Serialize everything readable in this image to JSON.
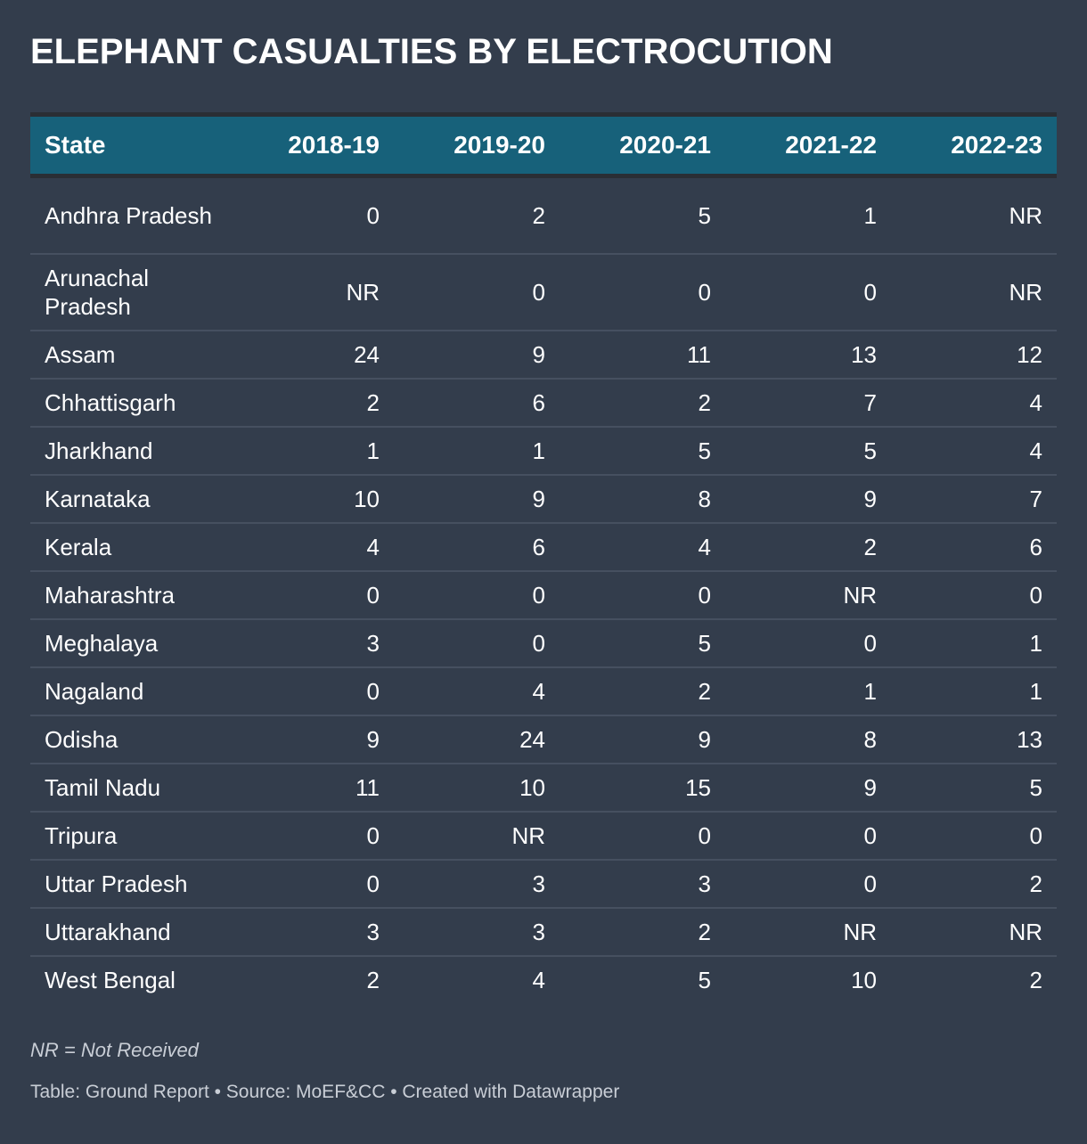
{
  "title": "ELEPHANT CASUALTIES BY ELECTROCUTION",
  "colors": {
    "background": "#333d4c",
    "header": "#17617a",
    "text": "#ffffff"
  },
  "chart_data": {
    "type": "table",
    "columns": [
      "State",
      "2018-19",
      "2019-20",
      "2020-21",
      "2021-22",
      "2022-23"
    ],
    "rows": [
      [
        "Andhra Pradesh",
        "0",
        "2",
        "5",
        "1",
        "NR"
      ],
      [
        "Arunachal Pradesh",
        "NR",
        "0",
        "0",
        "0",
        "NR"
      ],
      [
        "Assam",
        "24",
        "9",
        "11",
        "13",
        "12"
      ],
      [
        "Chhattisgarh",
        "2",
        "6",
        "2",
        "7",
        "4"
      ],
      [
        "Jharkhand",
        "1",
        "1",
        "5",
        "5",
        "4"
      ],
      [
        "Karnataka",
        "10",
        "9",
        "8",
        "9",
        "7"
      ],
      [
        "Kerala",
        "4",
        "6",
        "4",
        "2",
        "6"
      ],
      [
        "Maharashtra",
        "0",
        "0",
        "0",
        "NR",
        "0"
      ],
      [
        "Meghalaya",
        "3",
        "0",
        "5",
        "0",
        "1"
      ],
      [
        "Nagaland",
        "0",
        "4",
        "2",
        "1",
        "1"
      ],
      [
        "Odisha",
        "9",
        "24",
        "9",
        "8",
        "13"
      ],
      [
        "Tamil Nadu",
        "11",
        "10",
        "15",
        "9",
        "5"
      ],
      [
        "Tripura",
        "0",
        "NR",
        "0",
        "0",
        "0"
      ],
      [
        "Uttar Pradesh",
        "0",
        "3",
        "3",
        "0",
        "2"
      ],
      [
        "Uttarakhand",
        "3",
        "3",
        "2",
        "NR",
        "NR"
      ],
      [
        "West Bengal",
        "2",
        "4",
        "5",
        "10",
        "2"
      ]
    ]
  },
  "note": "NR = Not Received",
  "footer": "Table: Ground Report • Source: MoEF&CC • Created with Datawrapper"
}
